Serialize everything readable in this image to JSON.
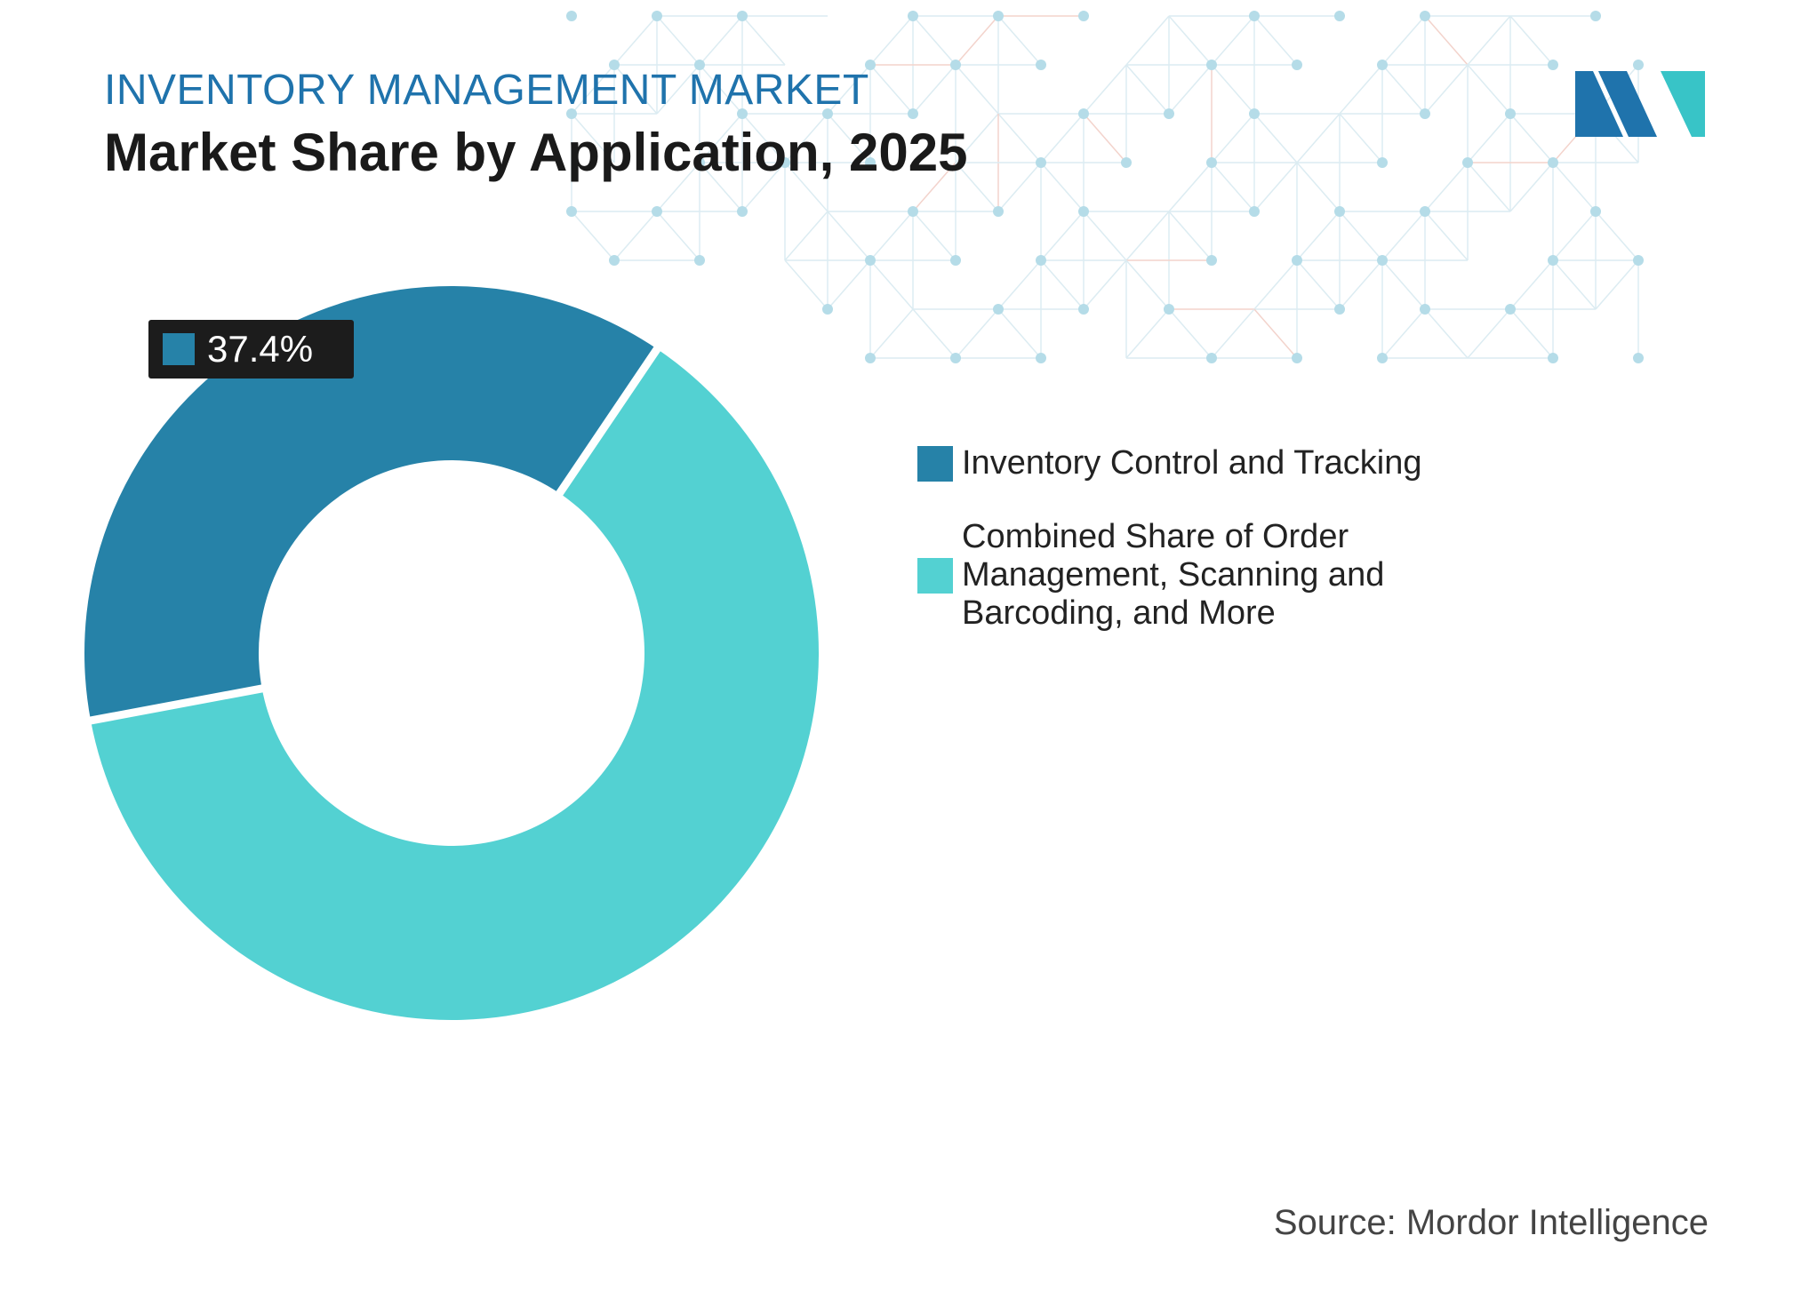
{
  "header": {
    "subtitle": "INVENTORY MANAGEMENT MARKET",
    "title": "Market Share by Application, 2025"
  },
  "colors": {
    "primary": "#2682a8",
    "secondary": "#53d1d2",
    "subtitle": "#1f73ac",
    "logo_dark": "#1f73ac",
    "logo_light": "#38c4c7",
    "pattern": "#b5dce8"
  },
  "chart_data": {
    "type": "pie",
    "variant": "donut",
    "categories": [
      "Inventory Control and Tracking",
      "Combined Share of Order Management, Scanning and Barcoding, and More"
    ],
    "values": [
      37.4,
      62.6
    ],
    "unit": "%",
    "data_labels": [
      "37.4%"
    ],
    "legend_position": "right"
  },
  "source": "Source: Mordor Intelligence"
}
